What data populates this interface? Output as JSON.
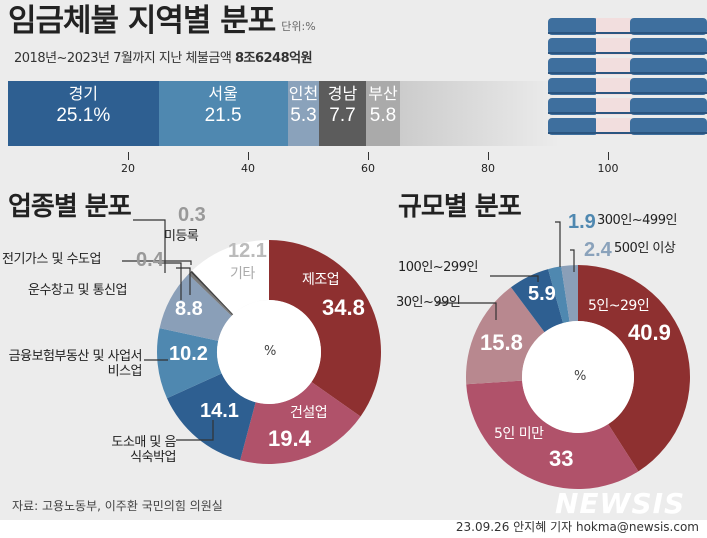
{
  "title": "임금체불 지역별 분포",
  "unit": "단위:%",
  "subtitle": {
    "text": "2018년~2023년 7월까지 지난 체불금액",
    "amount": "8조6248억원"
  },
  "chart_data": [
    {
      "type": "bar",
      "orientation": "horizontal-stacked",
      "xlim": [
        0,
        100
      ],
      "ticks": [
        "20",
        "40",
        "60",
        "80",
        "100"
      ],
      "categories": [
        "경기",
        "서울",
        "인천",
        "경남",
        "부산"
      ],
      "values": [
        25.1,
        21.5,
        5.3,
        7.7,
        5.8
      ],
      "labels": [
        "25.1%",
        "21.5",
        "5.3",
        "7.7",
        "5.8"
      ],
      "colors": [
        "#2e5f91",
        "#4f88b0",
        "#8aa2bb",
        "#5c5c5c",
        "#aaaaaa"
      ]
    },
    {
      "type": "pie",
      "style": "donut",
      "title": "업종별 분포",
      "center_label": "%",
      "categories": [
        "제조업",
        "건설업",
        "도소매 및 음식숙박업",
        "금융보험부동산 및 사업서비스업",
        "운수창고 및 통신업",
        "전기가스 및 수도업",
        "미등록",
        "기타"
      ],
      "values": [
        34.8,
        19.4,
        14.1,
        10.2,
        8.8,
        0.4,
        0.3,
        12.1
      ],
      "colors": [
        "#8e3030",
        "#b0526a",
        "#2e5f91",
        "#4f88b0",
        "#8a9fb8",
        "#7a7a7a",
        "#444444",
        "#ffffff"
      ]
    },
    {
      "type": "pie",
      "style": "donut",
      "title": "규모별 분포",
      "center_label": "%",
      "categories": [
        "5인~29인",
        "5인 미만",
        "30인~99인",
        "100인~299인",
        "300인~499인",
        "500인 이상"
      ],
      "values": [
        40.9,
        33.0,
        15.8,
        5.9,
        1.9,
        2.4
      ],
      "colors": [
        "#8e3030",
        "#b0526a",
        "#b8888f",
        "#2e5f91",
        "#4f88b0",
        "#8a9fb8"
      ]
    }
  ],
  "source": "자료: 고용노동부, 이주환 국민의힘 의원실",
  "credit": "23.09.26 안지혜 기자 hokma@newsis.com",
  "watermark": "NEWSIS"
}
